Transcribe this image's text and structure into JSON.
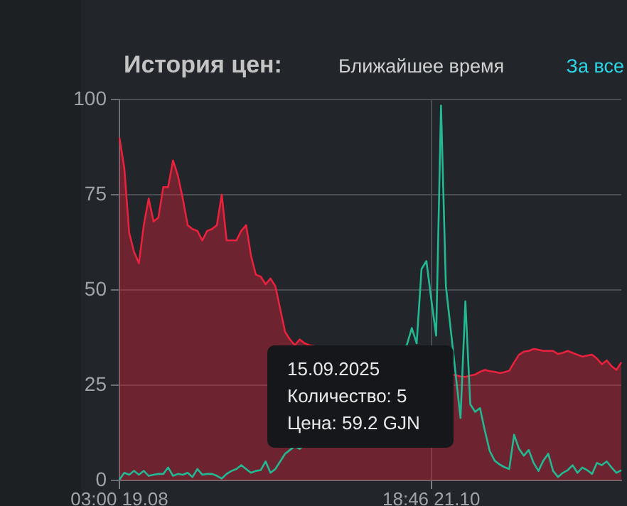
{
  "chart_data": {
    "type": "line",
    "title": "История цен:",
    "subtitle": "Ближайшее время",
    "annotations": [
      "15.09.2025",
      "Количество: 5",
      "Цена: 59.2 GJN",
      "За все"
    ],
    "categories": [
      "03:00 19.08",
      null,
      null,
      null,
      null,
      null,
      null,
      null,
      null,
      null,
      null,
      null,
      null,
      null,
      null,
      null,
      null,
      null,
      null,
      null,
      null,
      null,
      null,
      null,
      null,
      null,
      null,
      null,
      null,
      null,
      null,
      null,
      null,
      null,
      null,
      null,
      null,
      null,
      null,
      null,
      null,
      null,
      null,
      null,
      null,
      null,
      null,
      null,
      null,
      null,
      null,
      null,
      null,
      null,
      null,
      null,
      null,
      null,
      null,
      null,
      null,
      null,
      null,
      null,
      "18:46 21.10",
      null,
      null,
      null,
      null,
      null,
      null,
      null,
      null,
      null,
      null,
      null,
      null,
      null,
      null,
      null,
      null,
      null,
      null,
      null,
      null,
      null,
      null,
      null,
      null,
      null,
      null,
      null,
      null,
      null,
      null,
      null,
      null,
      null,
      null,
      null,
      null,
      null,
      null,
      null
    ],
    "series": [
      {
        "type": "area",
        "color": "#e8223c",
        "values": [
          90,
          82,
          65,
          60,
          57,
          67,
          74,
          68,
          69,
          77,
          77,
          84,
          80,
          74,
          67,
          66,
          65.5,
          63,
          65.5,
          66,
          67,
          75,
          63,
          63,
          63,
          65.5,
          67,
          59,
          54,
          53.5,
          51.5,
          53,
          51,
          45,
          39,
          37,
          35.5,
          37,
          36,
          35.5,
          null,
          null,
          null,
          null,
          null,
          null,
          null,
          null,
          null,
          null,
          null,
          null,
          null,
          null,
          null,
          null,
          null,
          null,
          null,
          null,
          null,
          null,
          null,
          null,
          null,
          null,
          null,
          null,
          null,
          27.6,
          27.3,
          27.2,
          27.5,
          27.8,
          28.5,
          29,
          28.7,
          28.5,
          28.2,
          28.4,
          28.8,
          31,
          33,
          33.8,
          34,
          34.5,
          34.3,
          34,
          34,
          34,
          33.2,
          33.5,
          34,
          33.5,
          33,
          32.5,
          32.8,
          33,
          32,
          30.5,
          31.5,
          30,
          29,
          31
        ]
      },
      {
        "type": "line",
        "color": "#22b892",
        "values": [
          0.2,
          2,
          1.5,
          2.5,
          1.5,
          2.5,
          1.2,
          1.5,
          1.7,
          1.7,
          3.4,
          1.2,
          1.7,
          1.5,
          2,
          0.9,
          3,
          1.5,
          1.7,
          1.7,
          1.2,
          0.5,
          1.7,
          2.5,
          3,
          4,
          3,
          2,
          2.5,
          2.7,
          5,
          2,
          3,
          5,
          7,
          8,
          9,
          8.3,
          null,
          null,
          null,
          null,
          null,
          null,
          null,
          null,
          null,
          null,
          null,
          null,
          null,
          null,
          null,
          null,
          null,
          null,
          null,
          null,
          null,
          35.6,
          40,
          36,
          55.5,
          57.6,
          47.5,
          38,
          98.4,
          51,
          null,
          null,
          16.4,
          47,
          20,
          18,
          19,
          13,
          7.7,
          5.2,
          4.2,
          3.5,
          3,
          12,
          8.3,
          6.5,
          8,
          4.6,
          2.5,
          5.2,
          7,
          2.5,
          0.9,
          2,
          2.7,
          4,
          2,
          3.4,
          2.7,
          1.7,
          4.6,
          4,
          5,
          3.4,
          2,
          2.7
        ]
      }
    ],
    "ylim": [
      0,
      100
    ],
    "yticks": [
      0,
      25,
      50,
      75,
      100
    ],
    "grid": true,
    "legend": false,
    "marker": "none"
  }
}
